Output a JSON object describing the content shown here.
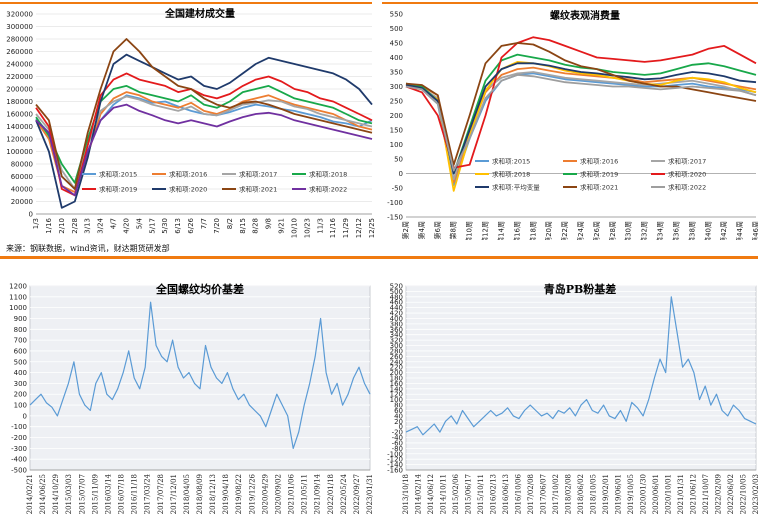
{
  "source_note": "来源：钢联数据，wind资讯，财达期货研发部",
  "chart_data": [
    {
      "type": "line",
      "title": "全国建材成交量",
      "ylim": [
        0,
        320000
      ],
      "yticks": [
        0,
        20000,
        40000,
        60000,
        80000,
        100000,
        120000,
        140000,
        160000,
        180000,
        200000,
        220000,
        240000,
        260000,
        280000,
        300000,
        320000
      ],
      "x_ticks": [
        "1/3",
        "1/16",
        "2/10",
        "2/28",
        "3/13",
        "3/24",
        "4/7",
        "4/20",
        "5/4",
        "5/17",
        "5/30",
        "6/13",
        "6/26",
        "7/7",
        "7/20",
        "8/2",
        "8/15",
        "8/28",
        "9/8",
        "9/21",
        "10/10",
        "10/23",
        "11/3",
        "11/16",
        "11/29",
        "12/12",
        "12/25"
      ],
      "legend_labels": [
        "求和项:2015",
        "求和项:2016",
        "求和项:2017",
        "求和项:2018",
        "求和项:2019",
        "求和项:2020",
        "求和项:2021",
        "求和项:2022"
      ],
      "series": [
        {
          "name": "求和项:2015",
          "color": "#5b9bd5",
          "values": [
            152000,
            130000,
            60000,
            40000,
            100000,
            150000,
            175000,
            190000,
            185000,
            178000,
            180000,
            172000,
            165000,
            160000,
            158000,
            163000,
            170000,
            175000,
            172000,
            168000,
            165000,
            160000,
            155000,
            148000,
            145000,
            140000,
            150000
          ]
        },
        {
          "name": "求和项:2016",
          "color": "#ed7d31",
          "values": [
            150000,
            120000,
            45000,
            35000,
            95000,
            160000,
            185000,
            195000,
            190000,
            180000,
            175000,
            170000,
            178000,
            165000,
            160000,
            168000,
            180000,
            185000,
            190000,
            182000,
            175000,
            170000,
            165000,
            160000,
            150000,
            140000,
            135000
          ]
        },
        {
          "name": "求和项:2017",
          "color": "#a5a5a5",
          "values": [
            160000,
            135000,
            70000,
            40000,
            110000,
            165000,
            180000,
            188000,
            183000,
            175000,
            170000,
            165000,
            172000,
            160000,
            158000,
            166000,
            175000,
            178000,
            182000,
            180000,
            172000,
            168000,
            160000,
            155000,
            150000,
            145000,
            140000
          ]
        },
        {
          "name": "求和项:2018",
          "color": "#18a84a",
          "values": [
            155000,
            125000,
            80000,
            50000,
            120000,
            180000,
            200000,
            205000,
            195000,
            190000,
            185000,
            180000,
            190000,
            175000,
            170000,
            180000,
            195000,
            200000,
            205000,
            195000,
            185000,
            180000,
            175000,
            170000,
            160000,
            150000,
            145000
          ]
        },
        {
          "name": "求和项:2019",
          "color": "#e31a1c",
          "values": [
            170000,
            140000,
            40000,
            30000,
            110000,
            190000,
            215000,
            225000,
            215000,
            210000,
            205000,
            195000,
            200000,
            190000,
            185000,
            192000,
            205000,
            215000,
            220000,
            212000,
            200000,
            195000,
            185000,
            180000,
            170000,
            160000,
            150000
          ]
        },
        {
          "name": "求和项:2020",
          "color": "#1f3a6b",
          "values": [
            150000,
            100000,
            10000,
            20000,
            90000,
            180000,
            240000,
            255000,
            245000,
            235000,
            225000,
            215000,
            220000,
            205000,
            200000,
            210000,
            225000,
            240000,
            250000,
            245000,
            240000,
            235000,
            230000,
            225000,
            215000,
            200000,
            175000
          ]
        },
        {
          "name": "求和项:2021",
          "color": "#8b4513",
          "values": [
            175000,
            150000,
            60000,
            40000,
            130000,
            200000,
            260000,
            280000,
            260000,
            235000,
            220000,
            205000,
            200000,
            185000,
            175000,
            170000,
            178000,
            180000,
            175000,
            168000,
            160000,
            155000,
            150000,
            145000,
            140000,
            135000,
            130000
          ]
        },
        {
          "name": "求和项:2022",
          "color": "#7030a0",
          "values": [
            150000,
            130000,
            45000,
            30000,
            100000,
            150000,
            170000,
            175000,
            165000,
            158000,
            150000,
            145000,
            150000,
            145000,
            140000,
            148000,
            155000,
            160000,
            162000,
            158000,
            150000,
            145000,
            140000,
            135000,
            130000,
            125000,
            120000
          ]
        }
      ]
    },
    {
      "type": "line",
      "title": "螺纹表观消费量",
      "ylim": [
        -150,
        550
      ],
      "yticks": [
        -150,
        -100,
        -50,
        0,
        50,
        100,
        150,
        200,
        250,
        300,
        350,
        400,
        450,
        500,
        550
      ],
      "x_ticks": [
        "第2周",
        "第4周",
        "第6周",
        "第8周",
        "第10周",
        "第12周",
        "第14周",
        "第16周",
        "第18周",
        "第20周",
        "第22周",
        "第24周",
        "第26周",
        "第28周",
        "第30周",
        "第32周",
        "第34周",
        "第36周",
        "第38周",
        "第40周",
        "第42周",
        "第44周",
        "第46周"
      ],
      "legend_labels": [
        "求和项:2015",
        "求和项:2016",
        "求和项:2017",
        "求和项:2018",
        "求和项:2019",
        "求和项:2020",
        "求和项:平均变量",
        "求和项:2021",
        "求和项:2022"
      ],
      "series": [
        {
          "name": "求和项:2015",
          "color": "#5b9bd5",
          "values": [
            300,
            290,
            240,
            -40,
            120,
            250,
            320,
            340,
            345,
            335,
            325,
            320,
            315,
            310,
            305,
            300,
            300,
            305,
            310,
            300,
            295,
            290,
            280
          ]
        },
        {
          "name": "求和项:2016",
          "color": "#ed7d31",
          "values": [
            310,
            300,
            270,
            -30,
            140,
            280,
            340,
            360,
            365,
            355,
            345,
            340,
            335,
            330,
            325,
            315,
            320,
            325,
            330,
            320,
            310,
            300,
            290
          ]
        },
        {
          "name": "求和项:2017",
          "color": "#a5a5a5",
          "values": [
            305,
            295,
            260,
            -20,
            150,
            290,
            330,
            345,
            350,
            340,
            330,
            325,
            320,
            315,
            310,
            305,
            310,
            315,
            320,
            310,
            300,
            285,
            270
          ]
        },
        {
          "name": "求和项:2018",
          "color": "#ffc000",
          "values": [
            300,
            290,
            255,
            -60,
            130,
            285,
            360,
            385,
            380,
            370,
            355,
            345,
            340,
            330,
            320,
            310,
            305,
            320,
            330,
            325,
            315,
            295,
            280
          ]
        },
        {
          "name": "求和项:2019",
          "color": "#18a84a",
          "values": [
            310,
            300,
            250,
            0,
            160,
            320,
            390,
            410,
            400,
            390,
            375,
            365,
            360,
            350,
            345,
            340,
            345,
            360,
            375,
            380,
            370,
            355,
            340
          ]
        },
        {
          "name": "求和项:2020",
          "color": "#e31a1c",
          "values": [
            300,
            280,
            200,
            20,
            30,
            200,
            400,
            450,
            470,
            460,
            440,
            420,
            400,
            395,
            390,
            385,
            390,
            400,
            410,
            430,
            440,
            410,
            380
          ]
        },
        {
          "name": "求和项:平均变量",
          "color": "#1f3a6b",
          "values": [
            305,
            295,
            250,
            0,
            150,
            300,
            360,
            380,
            380,
            372,
            360,
            350,
            345,
            338,
            332,
            325,
            328,
            340,
            350,
            345,
            335,
            320,
            315
          ]
        },
        {
          "name": "求和项:2021",
          "color": "#8b4513",
          "values": [
            310,
            305,
            270,
            30,
            200,
            380,
            440,
            450,
            445,
            420,
            390,
            370,
            360,
            340,
            320,
            310,
            300,
            300,
            290,
            280,
            270,
            260,
            250
          ]
        },
        {
          "name": "求和项:2022",
          "color": "#9e9e9e",
          "values": [
            300,
            290,
            240,
            10,
            120,
            260,
            320,
            340,
            335,
            325,
            315,
            310,
            305,
            300,
            300,
            295,
            290,
            295,
            300,
            295,
            290,
            285,
            270
          ]
        }
      ]
    },
    {
      "type": "line",
      "title": "全国螺纹均价基差",
      "ylim": [
        -500,
        1200
      ],
      "yticks": [
        -500,
        -400,
        -300,
        -200,
        -100,
        0,
        100,
        200,
        300,
        400,
        500,
        600,
        700,
        800,
        900,
        1000,
        1100,
        1200
      ],
      "x_ticks": [
        "2014/02/21",
        "2014/06/25",
        "2014/10/29",
        "2015/03/03",
        "2015/07/07",
        "2015/11/09",
        "2016/03/14",
        "2016/07/18",
        "2016/11/18",
        "2017/03/24",
        "2017/07/28",
        "2017/12/01",
        "2018/04/05",
        "2018/08/09",
        "2018/12/13",
        "2019/04/18",
        "2019/08/22",
        "2019/12/26",
        "2020/04/29",
        "2020/09/02",
        "2021/01/06",
        "2021/05/11",
        "2021/09/14",
        "2022/01/18",
        "2022/05/24",
        "2022/09/27",
        "2023/01/31"
      ],
      "series": [
        {
          "name": "基差",
          "color": "#5b9bd5",
          "values": [
            100,
            150,
            200,
            120,
            80,
            0,
            150,
            300,
            500,
            200,
            100,
            50,
            300,
            400,
            200,
            150,
            250,
            400,
            600,
            350,
            250,
            450,
            1050,
            650,
            550,
            500,
            700,
            450,
            350,
            400,
            300,
            250,
            650,
            450,
            350,
            300,
            400,
            250,
            150,
            200,
            100,
            50,
            0,
            -100,
            50,
            200,
            100,
            0,
            -300,
            -150,
            100,
            300,
            550,
            900,
            400,
            200,
            300,
            100,
            200,
            350,
            450,
            300,
            200
          ]
        }
      ]
    },
    {
      "type": "line",
      "title": "青岛PB粉基差",
      "ylim": [
        -160,
        520
      ],
      "yticks": [
        -160,
        -140,
        -120,
        -100,
        -80,
        -60,
        -40,
        -20,
        0,
        20,
        40,
        60,
        80,
        100,
        120,
        140,
        160,
        180,
        200,
        220,
        240,
        260,
        280,
        300,
        320,
        340,
        360,
        380,
        400,
        420,
        440,
        460,
        480,
        500,
        520
      ],
      "x_ticks": [
        "2013/10/18",
        "2014/02/14",
        "2014/06/12",
        "2014/10/11",
        "2015/02/06",
        "2015/06/17",
        "2015/10/11",
        "2016/02/13",
        "2016/06/13",
        "2016/10/06",
        "2017/02/08",
        "2017/06/07",
        "2017/10/02",
        "2018/02/08",
        "2018/06/02",
        "2018/10/05",
        "2019/02/01",
        "2019/06/01",
        "2019/10/05",
        "2020/01/30",
        "2020/06/01",
        "2020/10/01",
        "2021/01/31",
        "2021/06/12",
        "2021/10/07",
        "2022/02/09",
        "2022/06/02",
        "2022/10/05",
        "2023/02/03"
      ],
      "series": [
        {
          "name": "基差",
          "color": "#5b9bd5",
          "values": [
            -20,
            -10,
            0,
            -30,
            -10,
            10,
            -20,
            20,
            40,
            10,
            60,
            30,
            0,
            20,
            40,
            60,
            40,
            50,
            70,
            40,
            30,
            60,
            80,
            60,
            40,
            50,
            30,
            60,
            50,
            70,
            40,
            80,
            100,
            60,
            50,
            80,
            40,
            30,
            60,
            20,
            90,
            70,
            40,
            100,
            180,
            250,
            200,
            480,
            350,
            220,
            250,
            200,
            100,
            150,
            80,
            120,
            60,
            40,
            80,
            60,
            30,
            20,
            10
          ]
        }
      ]
    }
  ]
}
